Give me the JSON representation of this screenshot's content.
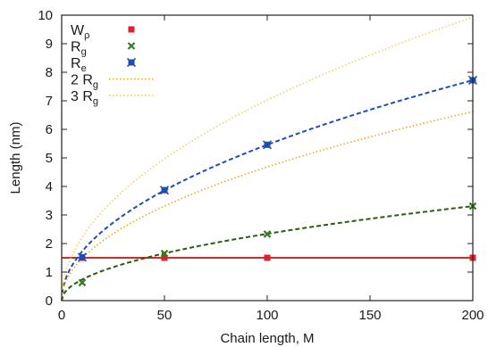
{
  "chart_data": {
    "type": "line",
    "xlabel": "Chain length, M",
    "ylabel": "Length (nm)",
    "xlim": [
      0,
      200
    ],
    "ylim": [
      0,
      10
    ],
    "x_ticks": [
      0,
      50,
      100,
      150,
      200
    ],
    "y_ticks": [
      0,
      1,
      2,
      3,
      4,
      5,
      6,
      7,
      8,
      9,
      10
    ],
    "x_tick_labels": [
      "0",
      "50",
      "100",
      "150",
      "200"
    ],
    "y_tick_labels": [
      "0",
      "1",
      "2",
      "3",
      "4",
      "5",
      "6",
      "7",
      "8",
      "9",
      "10"
    ],
    "grid": false,
    "legend_position": "top-left",
    "series": [
      {
        "name_main": "W",
        "name_sub": "ρ",
        "marker": "square",
        "color": "#e0202a",
        "x": [
          10,
          50,
          100,
          200
        ],
        "y": [
          1.5,
          1.5,
          1.5,
          1.5
        ],
        "fit": "constant",
        "fit_value": 1.5,
        "fit_color": "#d42a2a",
        "fit_style": "solid"
      },
      {
        "name_main": "R",
        "name_sub": "g",
        "marker": "x",
        "color": "#2e7d1e",
        "x": [
          10,
          50,
          100,
          200
        ],
        "y": [
          0.63,
          1.65,
          2.33,
          3.31
        ],
        "fit": "sqrt",
        "fit_coef": 0.2341,
        "fit_color": "#2e5a12",
        "fit_style": "dashed"
      },
      {
        "name_main": "R",
        "name_sub": "e",
        "marker": "bowtie",
        "color": "#1e4db5",
        "x": [
          10,
          50,
          100,
          200
        ],
        "y": [
          1.52,
          3.87,
          5.46,
          7.72
        ],
        "fit": "sqrt",
        "fit_coef": 0.5459,
        "fit_color": "#1e4db5",
        "fit_style": "dashed"
      },
      {
        "name_main": "2 R",
        "name_sub": "g",
        "marker": "none",
        "color": "#f0b93a",
        "fit": "sqrt",
        "fit_coef": 0.4682,
        "fit_color": "#e8a92a",
        "fit_style": "dotted"
      },
      {
        "name_main": "3 R",
        "name_sub": "g",
        "marker": "none",
        "color": "#f5d98a",
        "fit": "sqrt",
        "fit_coef": 0.7023,
        "fit_color": "#f2cf6a",
        "fit_style": "dotted"
      }
    ]
  }
}
